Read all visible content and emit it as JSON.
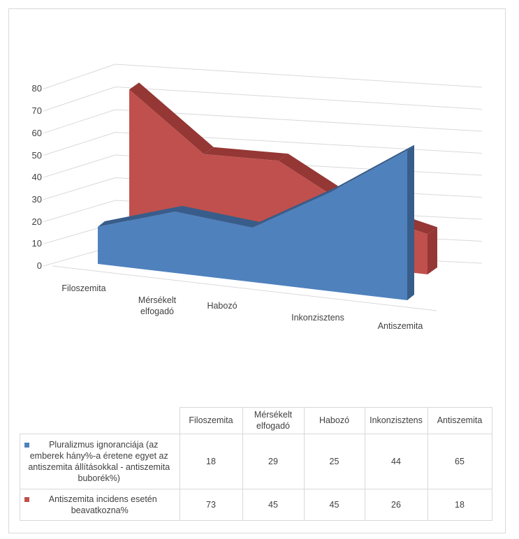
{
  "chart_data": {
    "type": "area",
    "three_d": true,
    "categories": [
      "Filoszemita",
      "Mérsékelt elfogadó",
      "Habozó",
      "Inkonzisztens",
      "Antiszemita"
    ],
    "category_lines": [
      [
        "Filoszemita"
      ],
      [
        "Mérsékelt",
        "elfogadó"
      ],
      [
        "Habozó"
      ],
      [
        "Inkonzisztens"
      ],
      [
        "Antiszemita"
      ]
    ],
    "ylim": [
      0,
      80
    ],
    "yticks": [
      "0",
      "10",
      "20",
      "30",
      "40",
      "50",
      "60",
      "70",
      "80"
    ],
    "grid": true,
    "legend": "data-table",
    "series": [
      {
        "name": "Pluralizmus ignoranciája (az emberek hány%-a éretene egyet az antiszemita állításokkal - antiszemita buborék%)",
        "color": "#4f81bd",
        "dark": "#385d8a",
        "values": [
          18,
          29,
          25,
          44,
          65
        ]
      },
      {
        "name": "Antiszemita incidens esetén beavatkozna%",
        "color": "#c0504d",
        "dark": "#953735",
        "values": [
          73,
          45,
          45,
          26,
          18
        ]
      }
    ]
  }
}
